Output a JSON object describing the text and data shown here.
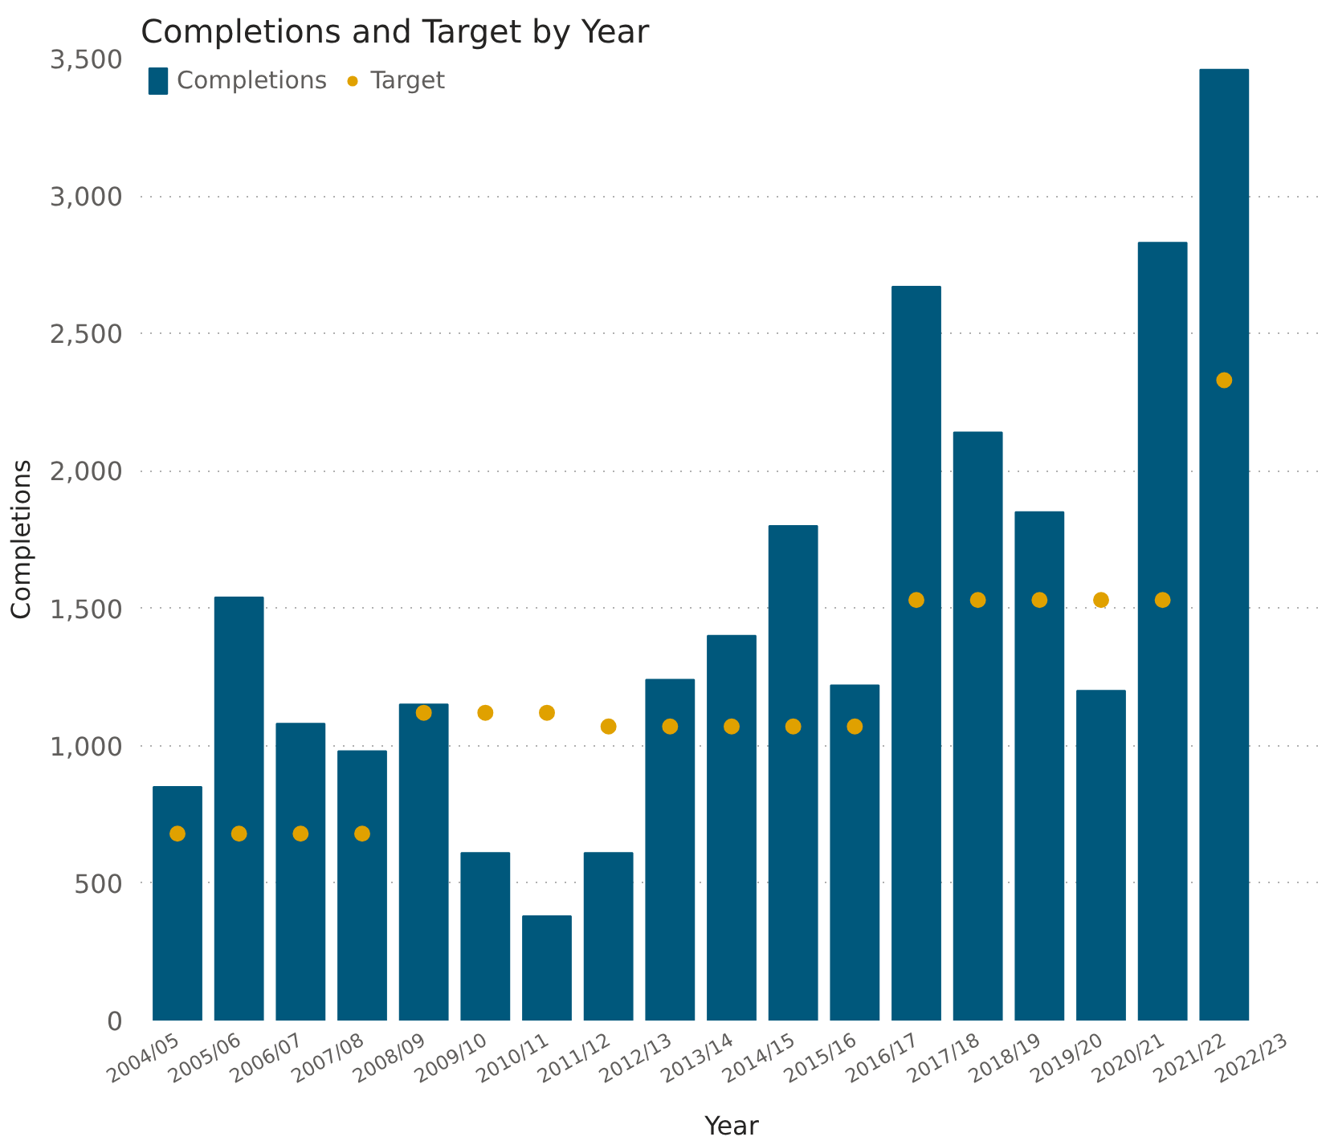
{
  "chart_data": {
    "type": "bar",
    "title": "Completions and Target by Year",
    "xlabel": "Year",
    "ylabel": "Completions",
    "categories": [
      "2004/05",
      "2005/06",
      "2006/07",
      "2007/08",
      "2008/09",
      "2009/10",
      "2010/11",
      "2011/12",
      "2012/13",
      "2013/14",
      "2014/15",
      "2015/16",
      "2016/17",
      "2017/18",
      "2018/19",
      "2019/20",
      "2020/21",
      "2021/22",
      "2022/23"
    ],
    "series": [
      {
        "name": "Completions",
        "color": "#00587c",
        "values": [
          850,
          1540,
          1080,
          980,
          1150,
          610,
          380,
          610,
          1240,
          1400,
          1800,
          1220,
          2670,
          2140,
          1850,
          1200,
          2830,
          3460,
          null
        ]
      },
      {
        "name": "Target",
        "type": "scatter",
        "color": "#e0a100",
        "marker": "circle",
        "values": [
          680,
          680,
          680,
          680,
          1120,
          1120,
          1120,
          1070,
          1070,
          1070,
          1070,
          1070,
          1530,
          1530,
          1530,
          1530,
          1530,
          2330,
          null
        ]
      }
    ],
    "ylim": [
      0,
      3500
    ],
    "yticks": [
      0,
      {
        "value": 500,
        "label": "500"
      },
      {
        "value": 1000,
        "label": "1,000"
      },
      {
        "value": 1500,
        "label": "1,500"
      },
      {
        "value": 2000,
        "label": "2,000"
      },
      {
        "value": 2500,
        "label": "2,500"
      },
      {
        "value": 3000,
        "label": "3,000"
      },
      {
        "value": 3500,
        "label": "3,500"
      }
    ],
    "grid": "y",
    "legend": "top left"
  }
}
